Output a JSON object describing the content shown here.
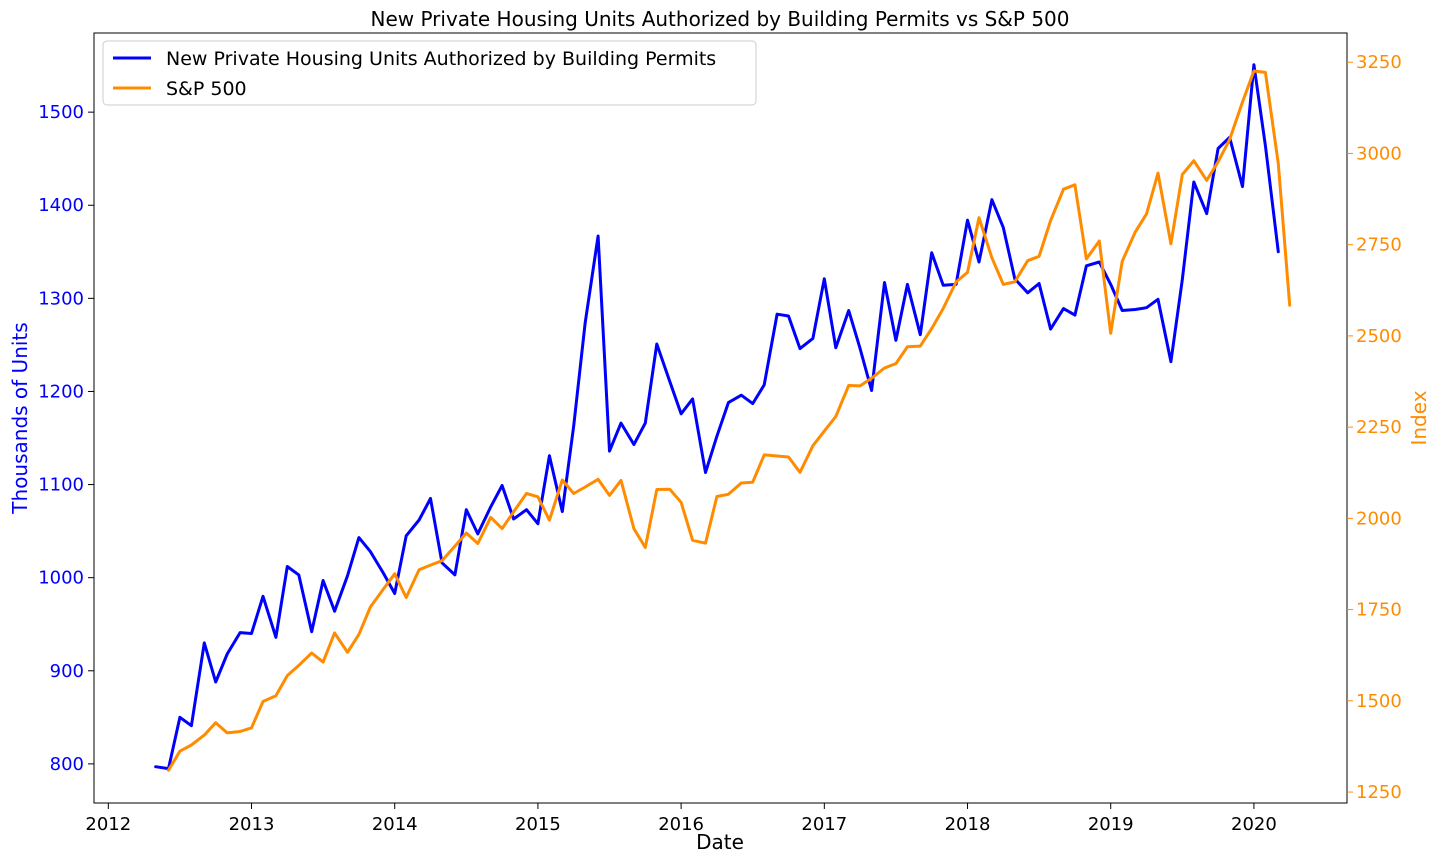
{
  "chart_data": {
    "type": "line",
    "title": "New Private Housing Units Authorized by Building Permits vs S&P 500",
    "xlabel": "Date",
    "ylabel_left": "Thousands of Units",
    "ylabel_right": "Index",
    "xlim": [
      2011.9,
      2020.65
    ],
    "ylim_left": [
      758,
      1585
    ],
    "ylim_right": [
      1220,
      3330
    ],
    "x_ticks": [
      2012,
      2013,
      2014,
      2015,
      2016,
      2017,
      2018,
      2019,
      2020
    ],
    "y_ticks_left": [
      800,
      900,
      1000,
      1100,
      1200,
      1300,
      1400,
      1500
    ],
    "y_ticks_right": [
      1250,
      1500,
      1750,
      2000,
      2250,
      2500,
      2750,
      3000,
      3250
    ],
    "legend_position": "top-left",
    "grid": false,
    "series": [
      {
        "name": "New Private Housing Units Authorized by Building Permits",
        "axis": "left",
        "color": "#0000ff",
        "x": [
          2012.33,
          2012.42,
          2012.5,
          2012.58,
          2012.67,
          2012.75,
          2012.83,
          2012.92,
          2013.0,
          2013.08,
          2013.17,
          2013.25,
          2013.33,
          2013.42,
          2013.5,
          2013.58,
          2013.67,
          2013.75,
          2013.83,
          2013.92,
          2014.0,
          2014.08,
          2014.17,
          2014.25,
          2014.33,
          2014.42,
          2014.5,
          2014.58,
          2014.67,
          2014.75,
          2014.83,
          2014.92,
          2015.0,
          2015.08,
          2015.17,
          2015.25,
          2015.33,
          2015.42,
          2015.5,
          2015.58,
          2015.67,
          2015.75,
          2015.83,
          2015.92,
          2016.0,
          2016.08,
          2016.17,
          2016.25,
          2016.33,
          2016.42,
          2016.5,
          2016.58,
          2016.67,
          2016.75,
          2016.83,
          2016.92,
          2017.0,
          2017.08,
          2017.17,
          2017.25,
          2017.33,
          2017.42,
          2017.5,
          2017.58,
          2017.67,
          2017.75,
          2017.83,
          2017.92,
          2018.0,
          2018.08,
          2018.17,
          2018.25,
          2018.33,
          2018.42,
          2018.5,
          2018.58,
          2018.67,
          2018.75,
          2018.83,
          2018.92,
          2019.0,
          2019.08,
          2019.17,
          2019.25,
          2019.33,
          2019.42,
          2019.5,
          2019.58,
          2019.67,
          2019.75,
          2019.83,
          2019.92,
          2020.0,
          2020.08,
          2020.17
        ],
        "values": [
          797,
          795,
          850,
          841,
          930,
          888,
          918,
          941,
          940,
          980,
          936,
          1012,
          1003,
          942,
          997,
          964,
          1002,
          1043,
          1028,
          1005,
          983,
          1045,
          1062,
          1085,
          1016,
          1003,
          1073,
          1047,
          1076,
          1099,
          1063,
          1073,
          1058,
          1131,
          1071,
          1163,
          1274,
          1367,
          1136,
          1166,
          1143,
          1166,
          1251,
          1211,
          1176,
          1192,
          1113,
          1152,
          1188,
          1196,
          1187,
          1207,
          1283,
          1281,
          1246,
          1257,
          1321,
          1247,
          1287,
          1246,
          1201,
          1317,
          1255,
          1315,
          1261,
          1349,
          1314,
          1315,
          1384,
          1339,
          1406,
          1376,
          1321,
          1306,
          1316,
          1267,
          1289,
          1282,
          1335,
          1339,
          1315,
          1287,
          1288,
          1290,
          1299,
          1232,
          1320,
          1425,
          1391,
          1461,
          1473,
          1420,
          1551,
          1464,
          1350
        ]
      },
      {
        "name": "S&P 500",
        "axis": "right",
        "color": "#ff8c00",
        "x": [
          2012.42,
          2012.5,
          2012.58,
          2012.67,
          2012.75,
          2012.83,
          2012.92,
          2013.0,
          2013.08,
          2013.17,
          2013.25,
          2013.33,
          2013.42,
          2013.5,
          2013.58,
          2013.67,
          2013.75,
          2013.83,
          2013.92,
          2014.0,
          2014.08,
          2014.17,
          2014.25,
          2014.33,
          2014.42,
          2014.5,
          2014.58,
          2014.67,
          2014.75,
          2014.83,
          2014.92,
          2015.0,
          2015.08,
          2015.17,
          2015.25,
          2015.33,
          2015.42,
          2015.5,
          2015.58,
          2015.67,
          2015.75,
          2015.83,
          2015.92,
          2016.0,
          2016.08,
          2016.17,
          2016.25,
          2016.33,
          2016.42,
          2016.5,
          2016.58,
          2016.67,
          2016.75,
          2016.83,
          2016.92,
          2017.0,
          2017.08,
          2017.17,
          2017.25,
          2017.33,
          2017.42,
          2017.5,
          2017.58,
          2017.67,
          2017.75,
          2017.83,
          2017.92,
          2018.0,
          2018.08,
          2018.17,
          2018.25,
          2018.33,
          2018.42,
          2018.5,
          2018.58,
          2018.67,
          2018.75,
          2018.83,
          2018.92,
          2019.0,
          2019.08,
          2019.17,
          2019.25,
          2019.33,
          2019.42,
          2019.5,
          2019.58,
          2019.67,
          2019.75,
          2019.83,
          2019.92,
          2020.0,
          2020.08,
          2020.17,
          2020.25
        ],
        "values": [
          1310,
          1362,
          1379,
          1406,
          1440,
          1412,
          1416,
          1426,
          1498,
          1514,
          1569,
          1597,
          1631,
          1606,
          1686,
          1633,
          1682,
          1757,
          1806,
          1848,
          1783,
          1859,
          1872,
          1884,
          1924,
          1960,
          1931,
          2003,
          1972,
          2018,
          2068,
          2059,
          1995,
          2105,
          2068,
          2086,
          2107,
          2063,
          2104,
          1972,
          1920,
          2079,
          2080,
          2044,
          1940,
          1932,
          2060,
          2066,
          2097,
          2099,
          2174,
          2171,
          2168,
          2126,
          2199,
          2239,
          2279,
          2364,
          2363,
          2384,
          2412,
          2424,
          2470,
          2472,
          2520,
          2575,
          2648,
          2674,
          2824,
          2714,
          2641,
          2648,
          2706,
          2718,
          2816,
          2902,
          2914,
          2711,
          2760,
          2507,
          2704,
          2784,
          2834,
          2946,
          2752,
          2942,
          2980,
          2926,
          2977,
          3038,
          3141,
          3226,
          3222,
          2972,
          2584
        ]
      }
    ]
  }
}
